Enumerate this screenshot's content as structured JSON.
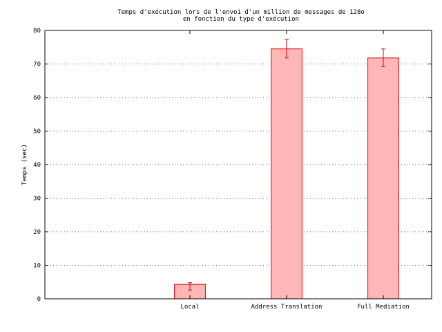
{
  "chart_data": {
    "type": "bar",
    "title": [
      "Temps d'exécution lors de l'envoi d'un million de messages de 128o",
      "en fonction du type d'exécution"
    ],
    "ylabel": "Temps (sec)",
    "xlabel": "",
    "categories": [
      "Local",
      "Address Translation",
      "Full Mediation"
    ],
    "values": [
      4.3,
      74.5,
      71.8
    ],
    "errors": [
      {
        "low": 2.6,
        "high": 4.8
      },
      {
        "low": 71.8,
        "high": 77.3
      },
      {
        "low": 69.2,
        "high": 74.5
      }
    ],
    "ylim": [
      0,
      80
    ],
    "yticks": [
      "0",
      "10",
      "20",
      "30",
      "40",
      "50",
      "60",
      "70",
      "80"
    ],
    "grid": "horizontal-dotted",
    "legend": "none",
    "colors": {
      "bar_fill": "#ffb6b6",
      "bar_stroke": "#e00000",
      "error_bar": "#e00000",
      "grid": "#555555"
    }
  }
}
